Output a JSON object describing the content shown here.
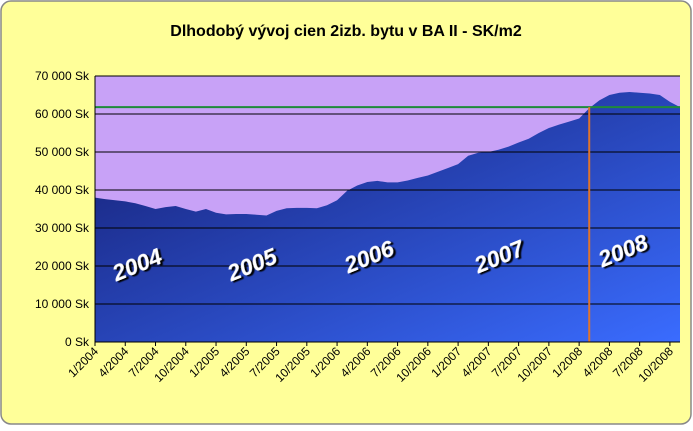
{
  "chart_data": {
    "type": "area",
    "title": "Dlhodobý vývoj cien 2izb. bytu v BA II - SK/m2",
    "categories": [
      "1/2004",
      null,
      null,
      "4/2004",
      null,
      null,
      "7/2004",
      null,
      null,
      "10/2004",
      null,
      null,
      "1/2005",
      null,
      null,
      "4/2005",
      null,
      null,
      "7/2005",
      null,
      null,
      "10/2005",
      null,
      null,
      "1/2006",
      null,
      null,
      "4/2006",
      null,
      null,
      "7/2006",
      null,
      null,
      "10/2006",
      null,
      null,
      "1/2007",
      null,
      null,
      "4/2007",
      null,
      null,
      "7/2007",
      null,
      null,
      "10/2007",
      null,
      null,
      "1/2008",
      null,
      null,
      "4/2008",
      null,
      null,
      "7/2008",
      null,
      null,
      "10/2008",
      null
    ],
    "values": [
      38000,
      37600,
      37300,
      37000,
      36500,
      35800,
      35000,
      35500,
      35800,
      35000,
      34300,
      35000,
      34000,
      33600,
      33700,
      33700,
      33500,
      33300,
      34500,
      35200,
      35300,
      35300,
      35200,
      36000,
      37300,
      39800,
      41200,
      42100,
      42400,
      42000,
      42000,
      42500,
      43200,
      43800,
      44800,
      45800,
      46800,
      49000,
      49800,
      50000,
      50600,
      51400,
      52500,
      53500,
      55000,
      56300,
      57200,
      58000,
      58800,
      61500,
      63600,
      65000,
      65600,
      65800,
      65600,
      65400,
      65000,
      63200,
      61800
    ],
    "colors": [
      "#141c6e",
      "#3a6cff"
    ],
    "background": "#c8a2f7",
    "ylim": [
      0,
      70000
    ],
    "yticks": [
      {
        "value": 0,
        "label": "0 Sk"
      },
      {
        "value": 10000,
        "label": "10 000 Sk"
      },
      {
        "value": 20000,
        "label": "20 000 Sk"
      },
      {
        "value": 30000,
        "label": "30 000 Sk"
      },
      {
        "value": 40000,
        "label": "40 000 Sk"
      },
      {
        "value": 50000,
        "label": "50 000 Sk"
      },
      {
        "value": 60000,
        "label": "60 000 Sk"
      },
      {
        "value": 70000,
        "label": "70 000 Sk"
      }
    ],
    "grid": true,
    "hline": {
      "value": 61800,
      "color": "#1f8a3a"
    },
    "vline": {
      "x": 49,
      "color": "#e0742a"
    },
    "annotations": [
      "2004",
      "2005",
      "2006",
      "2007",
      "2008"
    ]
  }
}
